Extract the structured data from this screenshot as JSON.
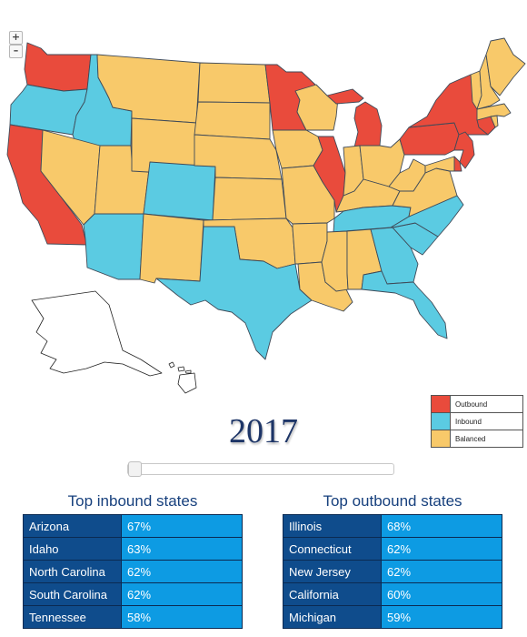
{
  "map": {
    "title": "",
    "colors": {
      "Outbound": "#e94b3c",
      "Inbound": "#5bcbe2",
      "Balanced": "#f8c96a"
    },
    "states": [
      {
        "name": "Washington",
        "status": "Outbound"
      },
      {
        "name": "Oregon",
        "status": "Inbound"
      },
      {
        "name": "California",
        "status": "Outbound"
      },
      {
        "name": "Idaho",
        "status": "Inbound"
      },
      {
        "name": "Nevada",
        "status": "Balanced"
      },
      {
        "name": "Utah",
        "status": "Balanced"
      },
      {
        "name": "Arizona",
        "status": "Inbound"
      },
      {
        "name": "Montana",
        "status": "Balanced"
      },
      {
        "name": "Wyoming",
        "status": "Balanced"
      },
      {
        "name": "Colorado",
        "status": "Inbound"
      },
      {
        "name": "New Mexico",
        "status": "Balanced"
      },
      {
        "name": "North Dakota",
        "status": "Balanced"
      },
      {
        "name": "South Dakota",
        "status": "Balanced"
      },
      {
        "name": "Nebraska",
        "status": "Balanced"
      },
      {
        "name": "Kansas",
        "status": "Balanced"
      },
      {
        "name": "Oklahoma",
        "status": "Balanced"
      },
      {
        "name": "Texas",
        "status": "Inbound"
      },
      {
        "name": "Minnesota",
        "status": "Outbound"
      },
      {
        "name": "Iowa",
        "status": "Balanced"
      },
      {
        "name": "Missouri",
        "status": "Balanced"
      },
      {
        "name": "Arkansas",
        "status": "Balanced"
      },
      {
        "name": "Louisiana",
        "status": "Balanced"
      },
      {
        "name": "Wisconsin",
        "status": "Balanced"
      },
      {
        "name": "Illinois",
        "status": "Outbound"
      },
      {
        "name": "Michigan",
        "status": "Outbound"
      },
      {
        "name": "Indiana",
        "status": "Balanced"
      },
      {
        "name": "Ohio",
        "status": "Balanced"
      },
      {
        "name": "Kentucky",
        "status": "Balanced"
      },
      {
        "name": "Tennessee",
        "status": "Inbound"
      },
      {
        "name": "Mississippi",
        "status": "Balanced"
      },
      {
        "name": "Alabama",
        "status": "Balanced"
      },
      {
        "name": "Georgia",
        "status": "Inbound"
      },
      {
        "name": "Florida",
        "status": "Inbound"
      },
      {
        "name": "South Carolina",
        "status": "Inbound"
      },
      {
        "name": "North Carolina",
        "status": "Inbound"
      },
      {
        "name": "Virginia",
        "status": "Balanced"
      },
      {
        "name": "West Virginia",
        "status": "Balanced"
      },
      {
        "name": "Pennsylvania",
        "status": "Outbound"
      },
      {
        "name": "New York",
        "status": "Outbound"
      },
      {
        "name": "New Jersey",
        "status": "Outbound"
      },
      {
        "name": "Delaware",
        "status": "Outbound"
      },
      {
        "name": "Maryland",
        "status": "Balanced"
      },
      {
        "name": "Connecticut",
        "status": "Outbound"
      },
      {
        "name": "Rhode Island",
        "status": "Balanced"
      },
      {
        "name": "Massachusetts",
        "status": "Balanced"
      },
      {
        "name": "Vermont",
        "status": "Balanced"
      },
      {
        "name": "New Hampshire",
        "status": "Balanced"
      },
      {
        "name": "Maine",
        "status": "Balanced"
      },
      {
        "name": "Alaska",
        "status": "none"
      },
      {
        "name": "Hawaii",
        "status": "none"
      }
    ]
  },
  "zoom": {
    "in_label": "+",
    "out_label": "–"
  },
  "legend": [
    {
      "label": "Outbound",
      "color": "#e94b3c"
    },
    {
      "label": "Inbound",
      "color": "#5bcbe2"
    },
    {
      "label": "Balanced",
      "color": "#f8c96a"
    }
  ],
  "year": "2017",
  "slider": {
    "value_fraction": 0.0
  },
  "inbound": {
    "title": "Top inbound states",
    "rows": [
      {
        "state": "Arizona",
        "pct": "67%"
      },
      {
        "state": "Idaho",
        "pct": "63%"
      },
      {
        "state": "North Carolina",
        "pct": "62%"
      },
      {
        "state": "South Carolina",
        "pct": "62%"
      },
      {
        "state": "Tennessee",
        "pct": "58%"
      }
    ]
  },
  "outbound": {
    "title": "Top outbound states",
    "rows": [
      {
        "state": "Illinois",
        "pct": "68%"
      },
      {
        "state": "Connecticut",
        "pct": "62%"
      },
      {
        "state": "New Jersey",
        "pct": "62%"
      },
      {
        "state": "California",
        "pct": "60%"
      },
      {
        "state": "Michigan",
        "pct": "59%"
      }
    ]
  }
}
